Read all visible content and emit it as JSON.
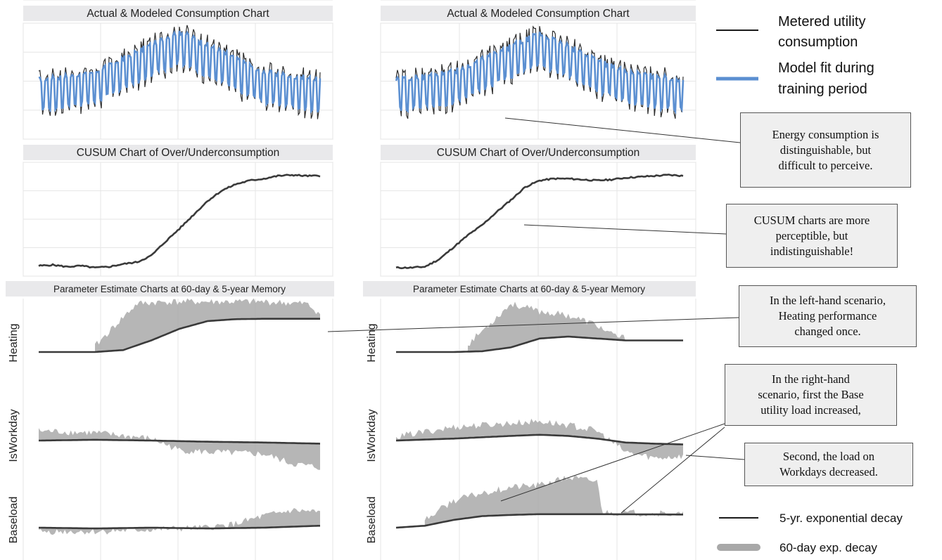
{
  "chart_data": [
    {
      "type": "line",
      "panel": "left-top",
      "title": "Actual & Modeled Consumption Chart",
      "series": [
        {
          "name": "Metered utility consumption",
          "color": "#333333"
        },
        {
          "name": "Model fit during training period",
          "color": "#5b8fd1"
        }
      ],
      "envelope": {
        "x": [
          0,
          0.2,
          0.5,
          0.8,
          1.0
        ],
        "y": [
          0.38,
          0.45,
          0.8,
          0.45,
          0.38
        ]
      },
      "grid": true
    },
    {
      "type": "line",
      "panel": "right-top",
      "title": "Actual & Modeled Consumption Chart",
      "series": [
        {
          "name": "Metered utility consumption",
          "color": "#333333"
        },
        {
          "name": "Model fit during training period",
          "color": "#5b8fd1"
        }
      ],
      "envelope": {
        "x": [
          0,
          0.2,
          0.5,
          0.8,
          1.0
        ],
        "y": [
          0.38,
          0.45,
          0.78,
          0.45,
          0.38
        ]
      },
      "grid": true
    },
    {
      "type": "line",
      "panel": "left-cusum",
      "title": "CUSUM Chart of Over/Underconsumption",
      "x": [
        0,
        0.05,
        0.1,
        0.15,
        0.2,
        0.25,
        0.3,
        0.35,
        0.4,
        0.45,
        0.5,
        0.55,
        0.6,
        0.65,
        0.7,
        0.75,
        0.8,
        0.85,
        0.9,
        0.95,
        1.0
      ],
      "y": [
        0.02,
        0.03,
        0.01,
        0.02,
        0.0,
        0.01,
        0.04,
        0.06,
        0.13,
        0.28,
        0.42,
        0.57,
        0.72,
        0.83,
        0.9,
        0.94,
        0.96,
        0.99,
        1.0,
        0.99,
        0.99
      ],
      "grid": true
    },
    {
      "type": "line",
      "panel": "right-cusum",
      "title": "CUSUM Chart of Over/Underconsumption",
      "x": [
        0,
        0.05,
        0.1,
        0.15,
        0.2,
        0.25,
        0.3,
        0.35,
        0.4,
        0.45,
        0.5,
        0.55,
        0.6,
        0.65,
        0.7,
        0.75,
        0.8,
        0.85,
        0.9,
        0.95,
        1.0
      ],
      "y": [
        0.0,
        0.0,
        0.01,
        0.09,
        0.22,
        0.35,
        0.46,
        0.6,
        0.73,
        0.87,
        0.94,
        0.96,
        0.96,
        0.95,
        0.94,
        0.95,
        0.97,
        0.98,
        0.99,
        1.0,
        0.99
      ],
      "grid": true
    },
    {
      "type": "area",
      "panel": "left-params",
      "title": "Parameter Estimate Charts at 60-day & 5-year Memory",
      "rows": [
        {
          "label": "Heating",
          "line": {
            "x": [
              0,
              0.2,
              0.3,
              0.4,
              0.5,
              0.6,
              0.7,
              0.8,
              1.0
            ],
            "y": [
              0,
              0,
              0.05,
              0.3,
              0.6,
              0.8,
              0.85,
              0.86,
              0.86
            ]
          },
          "band": {
            "x": [
              0.2,
              0.3,
              0.35,
              0.45,
              0.6,
              0.8,
              0.95,
              1.0
            ],
            "y": [
              0.15,
              0.9,
              1.25,
              1.3,
              1.3,
              1.3,
              1.25,
              1.0
            ]
          }
        },
        {
          "label": "IsWorkday",
          "line": {
            "x": [
              0,
              0.2,
              0.4,
              0.6,
              0.8,
              1.0
            ],
            "y": [
              0.0,
              0.02,
              0.0,
              -0.03,
              -0.05,
              -0.08
            ]
          },
          "band": {
            "x": [
              0,
              0.2,
              0.4,
              0.5,
              0.6,
              0.8,
              0.9,
              1.0
            ],
            "y": [
              0.25,
              0.2,
              0.05,
              -0.25,
              -0.3,
              -0.35,
              -0.6,
              -0.7
            ]
          }
        },
        {
          "label": "Baseload",
          "line": {
            "x": [
              0,
              0.2,
              0.4,
              0.6,
              0.8,
              1.0
            ],
            "y": [
              0.0,
              -0.02,
              0.0,
              -0.02,
              0.0,
              0.05
            ]
          },
          "band": {
            "x": [
              0,
              0.2,
              0.4,
              0.6,
              0.7,
              0.8,
              0.9,
              1.0
            ],
            "y": [
              -0.1,
              -0.1,
              -0.05,
              0.0,
              0.1,
              0.3,
              0.45,
              0.4
            ]
          }
        }
      ],
      "grid": true
    },
    {
      "type": "area",
      "panel": "right-params",
      "title": "Parameter Estimate Charts at 60-day & 5-year Memory",
      "rows": [
        {
          "label": "Heating",
          "line": {
            "x": [
              0,
              0.2,
              0.3,
              0.4,
              0.5,
              0.6,
              0.7,
              0.8,
              1.0
            ],
            "y": [
              0,
              0,
              0.02,
              0.12,
              0.35,
              0.4,
              0.35,
              0.3,
              0.3
            ]
          },
          "band": {
            "x": [
              0.25,
              0.35,
              0.4,
              0.5,
              0.6,
              0.7,
              0.75,
              0.8
            ],
            "y": [
              0.2,
              0.9,
              1.25,
              1.05,
              0.95,
              0.7,
              0.45,
              0.35
            ]
          }
        },
        {
          "label": "IsWorkday",
          "line": {
            "x": [
              0,
              0.2,
              0.4,
              0.5,
              0.6,
              0.7,
              0.8,
              0.9,
              1.0
            ],
            "y": [
              0.0,
              0.05,
              0.12,
              0.15,
              0.12,
              0.05,
              -0.05,
              -0.08,
              -0.1
            ]
          },
          "band": {
            "x": [
              0,
              0.2,
              0.4,
              0.5,
              0.6,
              0.7,
              0.8,
              0.9,
              1.0
            ],
            "y": [
              0.1,
              0.35,
              0.45,
              0.5,
              0.4,
              0.25,
              -0.3,
              -0.45,
              -0.4
            ]
          }
        },
        {
          "label": "Baseload",
          "line": {
            "x": [
              0,
              0.1,
              0.2,
              0.3,
              0.4,
              0.5,
              0.6,
              0.7,
              1.0
            ],
            "y": [
              0.0,
              0.05,
              0.2,
              0.3,
              0.33,
              0.35,
              0.35,
              0.35,
              0.34
            ]
          },
          "band": {
            "x": [
              0.1,
              0.2,
              0.3,
              0.4,
              0.5,
              0.6,
              0.7,
              0.72,
              1.0
            ],
            "y": [
              0.2,
              0.7,
              0.9,
              1.05,
              1.1,
              1.3,
              1.2,
              0.4,
              0.35
            ]
          }
        }
      ],
      "grid": true
    }
  ],
  "legend_top": [
    {
      "line1": "Metered utility",
      "line2": "consumption",
      "color": "#1a1a1a",
      "style": "thin"
    },
    {
      "line1": "Model fit during",
      "line2": "training period",
      "color": "#5b8fd1",
      "style": "thick"
    }
  ],
  "legend_bottom": [
    {
      "label": "5-yr. exponential decay",
      "color": "#1a1a1a",
      "style": "thin"
    },
    {
      "label": "60-day exp. decay",
      "color": "#a8a8a8",
      "style": "thick"
    }
  ],
  "callouts": [
    {
      "lines": [
        "Energy consumption is",
        "distinguishable, but",
        "difficult to perceive."
      ]
    },
    {
      "lines": [
        "CUSUM charts are more",
        "perceptible, but",
        "indistinguishable!"
      ]
    },
    {
      "lines": [
        "In the left-hand scenario,",
        "Heating performance",
        "changed once."
      ]
    },
    {
      "lines": [
        "In the right-hand",
        "scenario, first the Base",
        "utility load increased,"
      ]
    },
    {
      "lines": [
        "Second, the load on",
        "Workdays decreased."
      ]
    }
  ],
  "colors": {
    "metered": "#2f2f2f",
    "model": "#5b8fd1",
    "decay_5yr": "#3a3a3a",
    "decay_60day": "#a9a9a9",
    "panel_title_bg": "#e9e9eb",
    "grid": "#e6e6e6"
  }
}
